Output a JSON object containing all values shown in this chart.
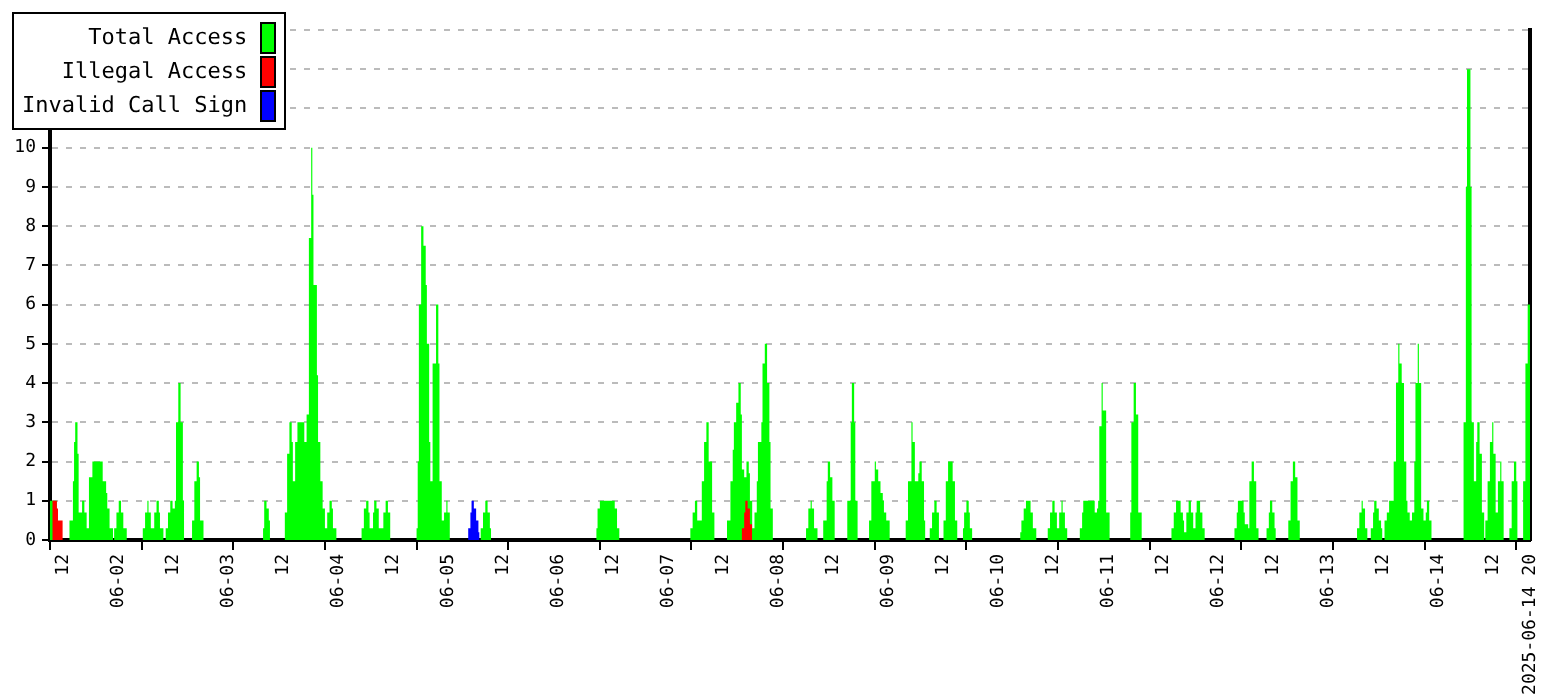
{
  "chart_data": {
    "type": "area",
    "marker": "none",
    "grid": "y",
    "legend": "top left",
    "xlim": [
      "2025-06-01T09:00",
      "2025-06-14T20:00"
    ],
    "xticks": [
      {
        "value": "2025-06-01T09:00",
        "label": null
      },
      {
        "value": "2025-06-01T12:00",
        "label": "12"
      },
      {
        "value": "2025-06-02T00:00",
        "label": "06-02"
      },
      {
        "value": "2025-06-02T05:00",
        "label": null
      },
      {
        "value": "2025-06-02T12:00",
        "label": "12"
      },
      {
        "value": "2025-06-03T00:00",
        "label": "06-03"
      },
      {
        "value": "2025-06-03T01:00",
        "label": null
      },
      {
        "value": "2025-06-03T12:00",
        "label": "12"
      },
      {
        "value": "2025-06-03T21:00",
        "label": null
      },
      {
        "value": "2025-06-04T00:00",
        "label": "06-04"
      },
      {
        "value": "2025-06-04T12:00",
        "label": "12"
      },
      {
        "value": "2025-06-04T17:00",
        "label": null
      },
      {
        "value": "2025-06-05T00:00",
        "label": "06-05"
      },
      {
        "value": "2025-06-05T12:00",
        "label": "12"
      },
      {
        "value": "2025-06-05T13:00",
        "label": null
      },
      {
        "value": "2025-06-06T00:00",
        "label": "06-06"
      },
      {
        "value": "2025-06-06T09:00",
        "label": null
      },
      {
        "value": "2025-06-06T12:00",
        "label": "12"
      },
      {
        "value": "2025-06-07T00:00",
        "label": "06-07"
      },
      {
        "value": "2025-06-07T05:00",
        "label": null
      },
      {
        "value": "2025-06-07T12:00",
        "label": "12"
      },
      {
        "value": "2025-06-08T00:00",
        "label": "06-08"
      },
      {
        "value": "2025-06-08T01:00",
        "label": null
      },
      {
        "value": "2025-06-08T12:00",
        "label": "12"
      },
      {
        "value": "2025-06-08T21:00",
        "label": null
      },
      {
        "value": "2025-06-09T00:00",
        "label": "06-09"
      },
      {
        "value": "2025-06-09T12:00",
        "label": "12"
      },
      {
        "value": "2025-06-09T17:00",
        "label": null
      },
      {
        "value": "2025-06-10T00:00",
        "label": "06-10"
      },
      {
        "value": "2025-06-10T12:00",
        "label": "12"
      },
      {
        "value": "2025-06-10T13:00",
        "label": null
      },
      {
        "value": "2025-06-11T00:00",
        "label": "06-11"
      },
      {
        "value": "2025-06-11T09:00",
        "label": null
      },
      {
        "value": "2025-06-11T12:00",
        "label": "12"
      },
      {
        "value": "2025-06-12T00:00",
        "label": "06-12"
      },
      {
        "value": "2025-06-12T05:00",
        "label": null
      },
      {
        "value": "2025-06-12T12:00",
        "label": "12"
      },
      {
        "value": "2025-06-13T00:00",
        "label": "06-13"
      },
      {
        "value": "2025-06-13T01:00",
        "label": null
      },
      {
        "value": "2025-06-13T12:00",
        "label": "12"
      },
      {
        "value": "2025-06-13T21:00",
        "label": null
      },
      {
        "value": "2025-06-14T00:00",
        "label": "06-14"
      },
      {
        "value": "2025-06-14T12:00",
        "label": "12"
      },
      {
        "value": "2025-06-14T17:00",
        "label": null
      },
      {
        "value": "2025-06-14T20:00",
        "label": "2025-06-14 20"
      }
    ],
    "ylim": [
      0,
      13
    ],
    "yticks": [
      0,
      1,
      2,
      3,
      4,
      5,
      6,
      7,
      8,
      9,
      10,
      {
        "value": 11,
        "label": null
      },
      {
        "value": 12,
        "label": null
      },
      {
        "value": 13,
        "label": null
      }
    ],
    "series": [
      {
        "name": "Total Access",
        "color": "#00ff00",
        "x": [
          "2025-06-01T09:00",
          "2025-06-01T10:30",
          "2025-06-01T13:15",
          "2025-06-01T14:00",
          "2025-06-01T14:15",
          "2025-06-01T14:30",
          "2025-06-01T15:00",
          "2025-06-01T15:15",
          "2025-06-01T16:00",
          "2025-06-01T16:30",
          "2025-06-01T17:00",
          "2025-06-01T17:30",
          "2025-06-01T18:15",
          "2025-06-01T20:30",
          "2025-06-01T21:15",
          "2025-06-01T21:30",
          "2025-06-01T22:00",
          "2025-06-01T22:45",
          "2025-06-01T23:00",
          "2025-06-01T23:30",
          "2025-06-02T00:00",
          "2025-06-02T00:30",
          "2025-06-02T01:00",
          "2025-06-02T01:45",
          "2025-06-02T05:15",
          "2025-06-02T05:45",
          "2025-06-02T06:15",
          "2025-06-02T06:30",
          "2025-06-02T07:00",
          "2025-06-02T07:45",
          "2025-06-02T08:15",
          "2025-06-02T08:45",
          "2025-06-02T09:00",
          "2025-06-02T09:45",
          "2025-06-02T10:15",
          "2025-06-02T10:45",
          "2025-06-02T11:15",
          "2025-06-02T11:45",
          "2025-06-02T12:15",
          "2025-06-02T12:30",
          "2025-06-02T13:00",
          "2025-06-02T13:30",
          "2025-06-02T14:00",
          "2025-06-02T14:15",
          "2025-06-02T16:00",
          "2025-06-02T16:30",
          "2025-06-02T17:00",
          "2025-06-02T17:30",
          "2025-06-02T17:45",
          "2025-06-02T18:30",
          "2025-06-03T07:30",
          "2025-06-03T07:45",
          "2025-06-03T08:15",
          "2025-06-03T08:45",
          "2025-06-03T09:00",
          "2025-06-03T12:15",
          "2025-06-03T12:45",
          "2025-06-03T13:15",
          "2025-06-03T13:45",
          "2025-06-03T14:00",
          "2025-06-03T14:30",
          "2025-06-03T15:00",
          "2025-06-03T16:30",
          "2025-06-03T17:00",
          "2025-06-03T17:30",
          "2025-06-03T18:00",
          "2025-06-03T18:15",
          "2025-06-03T18:30",
          "2025-06-03T19:15",
          "2025-06-03T19:30",
          "2025-06-03T20:00",
          "2025-06-03T20:30",
          "2025-06-03T21:00",
          "2025-06-03T21:30",
          "2025-06-03T22:00",
          "2025-06-03T22:30",
          "2025-06-03T22:45",
          "2025-06-03T23:30",
          "2025-06-04T05:00",
          "2025-06-04T05:30",
          "2025-06-04T06:00",
          "2025-06-04T06:30",
          "2025-06-04T06:45",
          "2025-06-04T07:30",
          "2025-06-04T07:45",
          "2025-06-04T08:15",
          "2025-06-04T08:45",
          "2025-06-04T09:45",
          "2025-06-04T10:15",
          "2025-06-04T10:45",
          "2025-06-04T11:15",
          "2025-06-04T17:00",
          "2025-06-04T17:15",
          "2025-06-04T17:30",
          "2025-06-04T18:00",
          "2025-06-04T18:30",
          "2025-06-04T19:00",
          "2025-06-04T19:15",
          "2025-06-04T19:45",
          "2025-06-04T20:00",
          "2025-06-04T20:30",
          "2025-06-04T21:15",
          "2025-06-04T21:45",
          "2025-06-04T22:00",
          "2025-06-04T22:30",
          "2025-06-04T23:00",
          "2025-06-04T23:30",
          "2025-06-04T23:45",
          "2025-06-05T00:15",
          "2025-06-05T07:00",
          "2025-06-05T07:30",
          "2025-06-05T08:00",
          "2025-06-05T08:30",
          "2025-06-05T09:00",
          "2025-06-05T09:15",
          "2025-06-06T08:15",
          "2025-06-06T08:30",
          "2025-06-06T09:00",
          "2025-06-06T12:15",
          "2025-06-06T12:45",
          "2025-06-06T13:15",
          "2025-06-07T04:45",
          "2025-06-07T05:15",
          "2025-06-07T05:45",
          "2025-06-07T06:15",
          "2025-06-07T07:15",
          "2025-06-07T07:45",
          "2025-06-07T08:15",
          "2025-06-07T08:45",
          "2025-06-07T09:30",
          "2025-06-07T10:00",
          "2025-06-07T12:45",
          "2025-06-07T13:30",
          "2025-06-07T14:00",
          "2025-06-07T14:15",
          "2025-06-07T14:45",
          "2025-06-07T15:15",
          "2025-06-07T15:45",
          "2025-06-07T16:00",
          "2025-06-07T16:30",
          "2025-06-07T17:00",
          "2025-06-07T17:30",
          "2025-06-07T17:45",
          "2025-06-07T18:15",
          "2025-06-07T18:45",
          "2025-06-07T19:15",
          "2025-06-07T19:30",
          "2025-06-07T20:15",
          "2025-06-07T20:30",
          "2025-06-07T21:00",
          "2025-06-07T21:30",
          "2025-06-07T22:00",
          "2025-06-07T22:15",
          "2025-06-07T22:45",
          "2025-06-08T06:00",
          "2025-06-08T06:30",
          "2025-06-08T07:00",
          "2025-06-08T07:15",
          "2025-06-08T07:45",
          "2025-06-08T08:30",
          "2025-06-08T09:45",
          "2025-06-08T10:30",
          "2025-06-08T10:45",
          "2025-06-08T11:15",
          "2025-06-08T11:45",
          "2025-06-08T12:15",
          "2025-06-08T15:00",
          "2025-06-08T15:45",
          "2025-06-08T16:00",
          "2025-06-08T16:30",
          "2025-06-08T16:45",
          "2025-06-08T17:15",
          "2025-06-08T19:45",
          "2025-06-08T20:15",
          "2025-06-08T21:00",
          "2025-06-08T21:15",
          "2025-06-08T21:45",
          "2025-06-08T22:15",
          "2025-06-08T22:45",
          "2025-06-08T23:00",
          "2025-06-08T23:30",
          "2025-06-09T00:15",
          "2025-06-09T03:45",
          "2025-06-09T04:15",
          "2025-06-09T05:00",
          "2025-06-09T05:15",
          "2025-06-09T05:45",
          "2025-06-09T06:30",
          "2025-06-09T06:45",
          "2025-06-09T07:15",
          "2025-06-09T07:45",
          "2025-06-09T08:00",
          "2025-06-09T09:00",
          "2025-06-09T09:30",
          "2025-06-09T10:00",
          "2025-06-09T10:30",
          "2025-06-09T11:00",
          "2025-06-09T12:00",
          "2025-06-09T12:30",
          "2025-06-09T13:00",
          "2025-06-09T14:00",
          "2025-06-09T14:30",
          "2025-06-09T15:00",
          "2025-06-09T16:15",
          "2025-06-09T16:30",
          "2025-06-09T17:00",
          "2025-06-09T17:30",
          "2025-06-09T17:45",
          "2025-06-09T18:15",
          "2025-06-10T04:45",
          "2025-06-10T05:00",
          "2025-06-10T05:30",
          "2025-06-10T06:00",
          "2025-06-10T07:00",
          "2025-06-10T07:30",
          "2025-06-10T08:15",
          "2025-06-10T10:45",
          "2025-06-10T11:15",
          "2025-06-10T11:45",
          "2025-06-10T12:15",
          "2025-06-10T12:45",
          "2025-06-10T13:15",
          "2025-06-10T13:45",
          "2025-06-10T14:00",
          "2025-06-10T14:30",
          "2025-06-10T15:00",
          "2025-06-10T17:45",
          "2025-06-10T18:15",
          "2025-06-10T18:30",
          "2025-06-10T21:00",
          "2025-06-10T21:30",
          "2025-06-10T21:45",
          "2025-06-10T22:00",
          "2025-06-10T22:30",
          "2025-06-10T22:45",
          "2025-06-10T23:30",
          "2025-06-11T00:15",
          "2025-06-11T04:45",
          "2025-06-11T05:00",
          "2025-06-11T05:30",
          "2025-06-11T06:00",
          "2025-06-11T06:30",
          "2025-06-11T07:15",
          "2025-06-11T13:45",
          "2025-06-11T14:15",
          "2025-06-11T14:45",
          "2025-06-11T15:45",
          "2025-06-11T16:15",
          "2025-06-11T16:30",
          "2025-06-11T17:00",
          "2025-06-11T17:30",
          "2025-06-11T18:00",
          "2025-06-11T18:30",
          "2025-06-11T19:00",
          "2025-06-11T19:15",
          "2025-06-11T20:00",
          "2025-06-11T20:30",
          "2025-06-11T21:00",
          "2025-06-12T03:30",
          "2025-06-12T04:00",
          "2025-06-12T04:15",
          "2025-06-12T05:30",
          "2025-06-12T05:45",
          "2025-06-12T06:30",
          "2025-06-12T06:45",
          "2025-06-12T07:15",
          "2025-06-12T07:45",
          "2025-06-12T08:15",
          "2025-06-12T08:45",
          "2025-06-12T10:30",
          "2025-06-12T11:00",
          "2025-06-12T11:15",
          "2025-06-12T11:45",
          "2025-06-12T12:15",
          "2025-06-12T12:30",
          "2025-06-12T15:15",
          "2025-06-12T15:45",
          "2025-06-12T16:15",
          "2025-06-12T16:45",
          "2025-06-12T17:15",
          "2025-06-12T17:45",
          "2025-06-13T06:15",
          "2025-06-13T06:45",
          "2025-06-13T07:15",
          "2025-06-13T07:30",
          "2025-06-13T08:00",
          "2025-06-13T08:30",
          "2025-06-13T09:15",
          "2025-06-13T09:45",
          "2025-06-13T10:00",
          "2025-06-13T10:30",
          "2025-06-13T11:00",
          "2025-06-13T11:30",
          "2025-06-13T11:45",
          "2025-06-13T12:15",
          "2025-06-13T12:45",
          "2025-06-13T13:15",
          "2025-06-13T14:15",
          "2025-06-13T14:45",
          "2025-06-13T15:15",
          "2025-06-13T15:30",
          "2025-06-13T16:00",
          "2025-06-13T16:30",
          "2025-06-13T17:00",
          "2025-06-13T17:15",
          "2025-06-13T17:45",
          "2025-06-13T18:15",
          "2025-06-13T18:45",
          "2025-06-13T19:00",
          "2025-06-13T19:30",
          "2025-06-13T19:45",
          "2025-06-13T20:15",
          "2025-06-13T20:45",
          "2025-06-13T21:15",
          "2025-06-13T21:30",
          "2025-06-13T22:00",
          "2025-06-13T22:30",
          "2025-06-14T05:30",
          "2025-06-14T06:00",
          "2025-06-14T06:15",
          "2025-06-14T07:00",
          "2025-06-14T07:15",
          "2025-06-14T07:45",
          "2025-06-14T08:15",
          "2025-06-14T08:30",
          "2025-06-14T09:00",
          "2025-06-14T09:30",
          "2025-06-14T10:00",
          "2025-06-14T10:15",
          "2025-06-14T10:45",
          "2025-06-14T11:15",
          "2025-06-14T11:45",
          "2025-06-14T12:00",
          "2025-06-14T12:30",
          "2025-06-14T13:00",
          "2025-06-14T13:30",
          "2025-06-14T13:45",
          "2025-06-14T14:15",
          "2025-06-14T15:30",
          "2025-06-14T16:00",
          "2025-06-14T16:30",
          "2025-06-14T17:00",
          "2025-06-14T17:15",
          "2025-06-14T18:30",
          "2025-06-14T19:00",
          "2025-06-14T19:30",
          "2025-06-14T20:00"
        ],
        "values": [
          1,
          0,
          0.5,
          1.5,
          2.5,
          3,
          2.2,
          0.7,
          1,
          0.7,
          0.3,
          1.6,
          2,
          1.5,
          1.2,
          0.8,
          0.3,
          0,
          0.3,
          0.7,
          1,
          0.7,
          0.3,
          0,
          0.3,
          0.7,
          1,
          0.7,
          0.3,
          0.7,
          1,
          0.7,
          0.3,
          0,
          0.3,
          0.7,
          1,
          0.8,
          1,
          3,
          4,
          3,
          1,
          0,
          0.5,
          1.5,
          2,
          1.6,
          0.5,
          0,
          0.3,
          1,
          0.8,
          0.5,
          0,
          0.7,
          2.2,
          3,
          2.5,
          1.5,
          2.5,
          3,
          2.5,
          3.2,
          7.7,
          10,
          8.8,
          6.5,
          4.2,
          2.5,
          1.5,
          0.8,
          0.3,
          0.7,
          1,
          0.8,
          0.3,
          0,
          0.3,
          0.8,
          1,
          0.7,
          0.3,
          0.7,
          1,
          0.8,
          0.3,
          0.7,
          1,
          0.7,
          0,
          0.3,
          2,
          6,
          8,
          7.5,
          6.5,
          5,
          2.5,
          1.5,
          4.5,
          6,
          4.5,
          1.5,
          0.5,
          0.7,
          1,
          0.7,
          0,
          0.3,
          0.7,
          1,
          0.7,
          0.3,
          0,
          0.3,
          0.8,
          1,
          0.8,
          0.3,
          0,
          0.3,
          0.7,
          1,
          0.5,
          1.5,
          2.5,
          3,
          2,
          0.7,
          0,
          0.5,
          1.5,
          2.3,
          3,
          3.5,
          4,
          3.2,
          1.8,
          1.6,
          2,
          1.7,
          1,
          0.3,
          0.7,
          1.5,
          2.5,
          3,
          4.5,
          5,
          4,
          2.5,
          0.8,
          0,
          0.3,
          0.8,
          1,
          0.8,
          0.3,
          0,
          0.5,
          1.5,
          2,
          1.6,
          1,
          0,
          1,
          3,
          4,
          3,
          1,
          0,
          0.5,
          1.5,
          2,
          1.8,
          1.5,
          1.2,
          1,
          0.7,
          0.5,
          0,
          0.5,
          1.5,
          3,
          2.5,
          1.5,
          1.7,
          2,
          1.5,
          0.5,
          0,
          0.3,
          0.7,
          1,
          0.7,
          0,
          0.5,
          1.5,
          2,
          1.5,
          0.5,
          0,
          0.3,
          0.7,
          1,
          0.7,
          0.3,
          0,
          0.2,
          0.5,
          0.8,
          1,
          0.7,
          0.3,
          0,
          0.3,
          0.7,
          1,
          0.7,
          0.3,
          0.7,
          1,
          0.7,
          0.3,
          0,
          0.3,
          0.7,
          1,
          0.7,
          0.8,
          1,
          2.9,
          4,
          3.3,
          0.7,
          0,
          0.7,
          3,
          4,
          3.2,
          0.7,
          0,
          0.3,
          0.7,
          1,
          0.7,
          0.5,
          0.2,
          0.7,
          1,
          0.7,
          0.3,
          0.7,
          1,
          0.7,
          0.3,
          0,
          0.3,
          0.7,
          1,
          0.7,
          0.4,
          0.3,
          1.5,
          2,
          1.5,
          0.3,
          0,
          0.3,
          0.7,
          1,
          0.7,
          0.3,
          0,
          0.5,
          1.5,
          2,
          1.6,
          0.5,
          0,
          0.3,
          0.7,
          1,
          0.8,
          0.3,
          0,
          0.3,
          0.7,
          1,
          0.8,
          0.5,
          0.3,
          0,
          0.5,
          0.7,
          1,
          2,
          4,
          5,
          4.5,
          4,
          2,
          1,
          0.7,
          0.5,
          0.7,
          2,
          4,
          5,
          4,
          0.8,
          0.5,
          0.7,
          1,
          0.5,
          0,
          3,
          9,
          12,
          9,
          3,
          1.5,
          2.5,
          3,
          2.2,
          0.7,
          0,
          0.5,
          1.5,
          2.5,
          3,
          2.2,
          0.7,
          1.5,
          2,
          1.5,
          0,
          0.3,
          1.5,
          2,
          1.5,
          0,
          1.5,
          4.5,
          6,
          6
        ]
      },
      {
        "name": "Illegal Access",
        "color": "#ff0000",
        "x": [
          "2025-06-01T09:30",
          "2025-06-01T10:30",
          "2025-06-01T10:45",
          "2025-06-01T11:45",
          "2025-06-07T16:00",
          "2025-06-07T16:30",
          "2025-06-07T16:45",
          "2025-06-07T17:15",
          "2025-06-07T17:45",
          "2025-06-07T18:15"
        ],
        "values": [
          1,
          0.8,
          0.5,
          0,
          0.3,
          0.7,
          1,
          0.8,
          0.4,
          0
        ]
      },
      {
        "name": "Invalid Call Sign",
        "color": "#0000ff",
        "x": [
          "2025-06-05T04:15",
          "2025-06-05T04:45",
          "2025-06-05T05:00",
          "2025-06-05T05:30",
          "2025-06-05T06:00",
          "2025-06-05T06:30",
          "2025-06-05T06:45"
        ],
        "values": [
          0.3,
          0.7,
          1,
          0.8,
          0.5,
          0.2,
          0
        ]
      }
    ]
  }
}
